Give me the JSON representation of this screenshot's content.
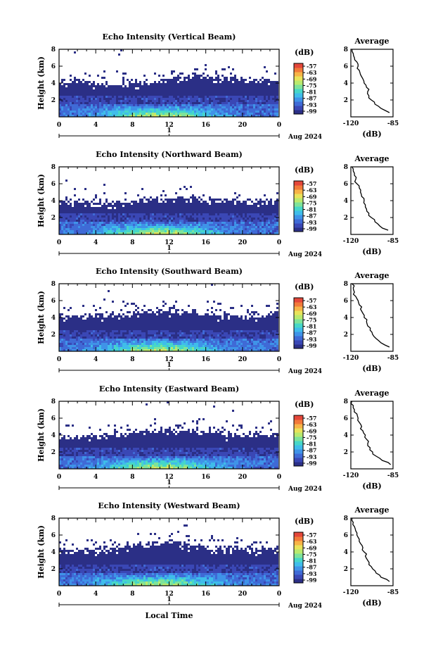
{
  "figure": {
    "date_label": "Aug 2024",
    "bottom_xlabel": "Local Time",
    "ylabel": "Height (km)",
    "avg_title": "Average",
    "avg_xlabel": "(dB)",
    "cbar_unit": "(dB)"
  },
  "colors": {
    "colormap": [
      "#2b2f86",
      "#3a47b5",
      "#3f6ad6",
      "#3f93e8",
      "#3fbdea",
      "#46d7c8",
      "#7ee39a",
      "#b9ea6e",
      "#e9e35a",
      "#f7b447",
      "#f27a3a",
      "#e4473a"
    ],
    "background": "#ffffff"
  },
  "chart_data": [
    {
      "type": "heatmap",
      "title": "Echo Intensity (Vertical Beam)",
      "x_ticks": [
        "0",
        "4",
        "8",
        "12",
        "16",
        "20",
        "0"
      ],
      "day_tick": "1",
      "xlim": [
        0,
        24
      ],
      "ylim": [
        0,
        8
      ],
      "y_ticks": [
        "2",
        "4",
        "6",
        "8"
      ],
      "colorbar_ticks": [
        "-57",
        "-63",
        "-69",
        "-75",
        "-81",
        "-87",
        "-93",
        "-99"
      ],
      "top_km": [
        4.3,
        4.2,
        4.0,
        3.9,
        4.0,
        4.3,
        4.6,
        4.8,
        4.9,
        4.7,
        4.6,
        4.5,
        4.5
      ],
      "avg_profile": {
        "title": "Average",
        "xlabel": "(dB)",
        "x_ticks": [
          "-120",
          "-85"
        ],
        "xlim": [
          -120,
          -85
        ],
        "y_ticks": [
          "2",
          "4",
          "6",
          "8"
        ],
        "ylim": [
          0,
          8
        ],
        "heights": [
          0.5,
          1.0,
          1.5,
          2.0,
          2.5,
          3.0,
          3.5,
          4.0,
          4.5,
          5.0,
          5.5,
          6.0,
          6.5,
          7.0,
          7.5,
          8.0
        ],
        "values": [
          -88,
          -95,
          -100,
          -103,
          -105,
          -106,
          -107,
          -109,
          -110,
          -112,
          -113,
          -114,
          -115,
          -117,
          -118,
          -119
        ]
      }
    },
    {
      "type": "heatmap",
      "title": "Echo Intensity (Northward Beam)",
      "x_ticks": [
        "0",
        "4",
        "8",
        "12",
        "16",
        "20",
        "0"
      ],
      "day_tick": "1",
      "xlim": [
        0,
        24
      ],
      "ylim": [
        0,
        8
      ],
      "y_ticks": [
        "2",
        "4",
        "6",
        "8"
      ],
      "colorbar_ticks": [
        "-57",
        "-63",
        "-69",
        "-75",
        "-81",
        "-87",
        "-93",
        "-99"
      ],
      "top_km": [
        4.1,
        4.0,
        3.8,
        3.7,
        3.9,
        4.2,
        4.4,
        4.5,
        4.3,
        4.2,
        4.1,
        4.0,
        4.0
      ],
      "avg_profile": {
        "title": "Average",
        "xlabel": "(dB)",
        "x_ticks": [
          "-120",
          "-85"
        ],
        "xlim": [
          -120,
          -85
        ],
        "y_ticks": [
          "2",
          "4",
          "6",
          "8"
        ],
        "ylim": [
          0,
          8
        ],
        "heights": [
          0.5,
          1.0,
          1.5,
          2.0,
          2.5,
          3.0,
          3.5,
          4.0,
          4.5,
          5.0,
          5.5,
          6.0,
          6.5,
          7.0,
          7.5,
          8.0
        ],
        "values": [
          -89,
          -96,
          -100,
          -103,
          -105,
          -107,
          -108,
          -109,
          -111,
          -112,
          -113,
          -115,
          -116,
          -117,
          -118,
          -119
        ]
      }
    },
    {
      "type": "heatmap",
      "title": "Echo Intensity (Southward Beam)",
      "x_ticks": [
        "0",
        "4",
        "8",
        "12",
        "16",
        "20",
        "0"
      ],
      "day_tick": "1",
      "xlim": [
        0,
        24
      ],
      "ylim": [
        0,
        8
      ],
      "y_ticks": [
        "2",
        "4",
        "6",
        "8"
      ],
      "colorbar_ticks": [
        "-57",
        "-63",
        "-69",
        "-75",
        "-81",
        "-87",
        "-93",
        "-99"
      ],
      "top_km": [
        4.3,
        4.2,
        4.3,
        4.4,
        4.7,
        4.9,
        5.0,
        4.8,
        4.6,
        4.4,
        4.3,
        4.4,
        4.5
      ],
      "avg_profile": {
        "title": "Average",
        "xlabel": "(dB)",
        "x_ticks": [
          "-120",
          "-85"
        ],
        "xlim": [
          -120,
          -85
        ],
        "y_ticks": [
          "2",
          "4",
          "6",
          "8"
        ],
        "ylim": [
          0,
          8
        ],
        "heights": [
          0.5,
          1.0,
          1.5,
          2.0,
          2.5,
          3.0,
          3.5,
          4.0,
          4.5,
          5.0,
          5.5,
          6.0,
          6.5,
          7.0,
          7.5,
          8.0
        ],
        "values": [
          -88,
          -95,
          -99,
          -102,
          -104,
          -106,
          -107,
          -109,
          -110,
          -112,
          -113,
          -114,
          -116,
          -117,
          -118,
          -119
        ]
      }
    },
    {
      "type": "heatmap",
      "title": "Echo Intensity (Eastward Beam)",
      "x_ticks": [
        "0",
        "4",
        "8",
        "12",
        "16",
        "20",
        "0"
      ],
      "day_tick": "1",
      "xlim": [
        0,
        24
      ],
      "ylim": [
        0,
        8
      ],
      "y_ticks": [
        "2",
        "4",
        "6",
        "8"
      ],
      "colorbar_ticks": [
        "-57",
        "-63",
        "-69",
        "-75",
        "-81",
        "-87",
        "-93",
        "-99"
      ],
      "top_km": [
        4.0,
        4.0,
        4.1,
        4.2,
        4.5,
        4.8,
        4.9,
        4.7,
        4.5,
        4.3,
        4.2,
        4.3,
        4.3
      ],
      "avg_profile": {
        "title": "Average",
        "xlabel": "(dB)",
        "x_ticks": [
          "-120",
          "-85"
        ],
        "xlim": [
          -120,
          -85
        ],
        "y_ticks": [
          "2",
          "4",
          "6",
          "8"
        ],
        "ylim": [
          0,
          8
        ],
        "heights": [
          0.5,
          1.0,
          1.5,
          2.0,
          2.5,
          3.0,
          3.5,
          4.0,
          4.5,
          5.0,
          5.5,
          6.0,
          6.5,
          7.0,
          7.5,
          8.0
        ],
        "values": [
          -87,
          -94,
          -99,
          -102,
          -104,
          -106,
          -107,
          -108,
          -110,
          -111,
          -113,
          -114,
          -115,
          -117,
          -118,
          -119
        ]
      }
    },
    {
      "type": "heatmap",
      "title": "Echo Intensity (Westward Beam)",
      "x_ticks": [
        "0",
        "4",
        "8",
        "12",
        "16",
        "20",
        "0"
      ],
      "day_tick": "1",
      "xlim": [
        0,
        24
      ],
      "ylim": [
        0,
        8
      ],
      "y_ticks": [
        "2",
        "4",
        "6",
        "8"
      ],
      "colorbar_ticks": [
        "-57",
        "-63",
        "-69",
        "-75",
        "-81",
        "-87",
        "-93",
        "-99"
      ],
      "top_km": [
        4.5,
        4.3,
        4.4,
        4.6,
        4.9,
        5.1,
        5.2,
        5.0,
        4.7,
        4.5,
        4.4,
        4.5,
        4.6
      ],
      "avg_profile": {
        "title": "Average",
        "xlabel": "(dB)",
        "x_ticks": [
          "-120",
          "-85"
        ],
        "xlim": [
          -120,
          -85
        ],
        "y_ticks": [
          "2",
          "4",
          "6",
          "8"
        ],
        "ylim": [
          0,
          8
        ],
        "heights": [
          0.5,
          1.0,
          1.5,
          2.0,
          2.5,
          3.0,
          3.5,
          4.0,
          4.5,
          5.0,
          5.5,
          6.0,
          6.5,
          7.0,
          7.5,
          8.0
        ],
        "values": [
          -88,
          -95,
          -99,
          -102,
          -105,
          -106,
          -108,
          -109,
          -110,
          -112,
          -113,
          -115,
          -116,
          -117,
          -118,
          -119
        ]
      }
    }
  ]
}
